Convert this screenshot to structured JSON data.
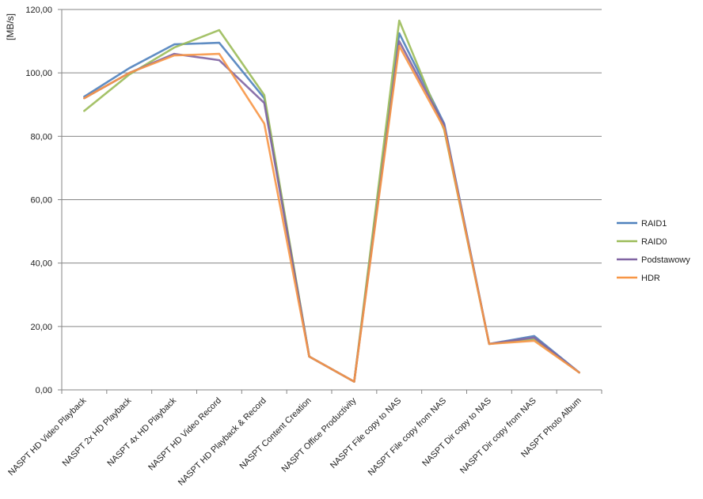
{
  "chart_data": {
    "type": "line",
    "ylabel": "[MB/s]",
    "ylim": [
      0,
      120
    ],
    "yticks": [
      "0,00",
      "20,00",
      "40,00",
      "60,00",
      "80,00",
      "100,00",
      "120,00"
    ],
    "grid": true,
    "legend_position": "right",
    "categories": [
      "NASPT HD Video Playback",
      "NASPT 2x HD Playback",
      "NASPT 4x HD Playback",
      "NASPT HD Video Record",
      "NASPT HD Playback & Record",
      "NASPT Content Creation",
      "NASPT Office Productivity",
      "NASPT File copy to NAS",
      "NASPT File copy from NAS",
      "NASPT Dir copy to NAS",
      "NASPT Dir copy from NAS",
      "NASPT Photo Album"
    ],
    "series": [
      {
        "name": "RAID1",
        "color": "#4F81BD",
        "values": [
          92.5,
          101.5,
          109.0,
          109.5,
          92.0,
          10.5,
          2.6,
          112.5,
          84.0,
          14.5,
          17.0,
          5.5
        ]
      },
      {
        "name": "RAID0",
        "color": "#9BBB59",
        "values": [
          88.0,
          99.5,
          108.0,
          113.5,
          93.0,
          10.5,
          2.6,
          116.5,
          82.0,
          14.5,
          16.0,
          5.5
        ]
      },
      {
        "name": "Podstawowy",
        "color": "#8064A2",
        "values": [
          92.0,
          100.0,
          106.0,
          104.0,
          90.5,
          10.5,
          2.6,
          110.0,
          83.5,
          14.5,
          16.5,
          5.5
        ]
      },
      {
        "name": "HDR",
        "color": "#F79646",
        "values": [
          92.0,
          100.0,
          105.5,
          106.0,
          84.0,
          10.5,
          2.6,
          108.5,
          82.5,
          14.5,
          15.5,
          5.5
        ]
      }
    ]
  }
}
